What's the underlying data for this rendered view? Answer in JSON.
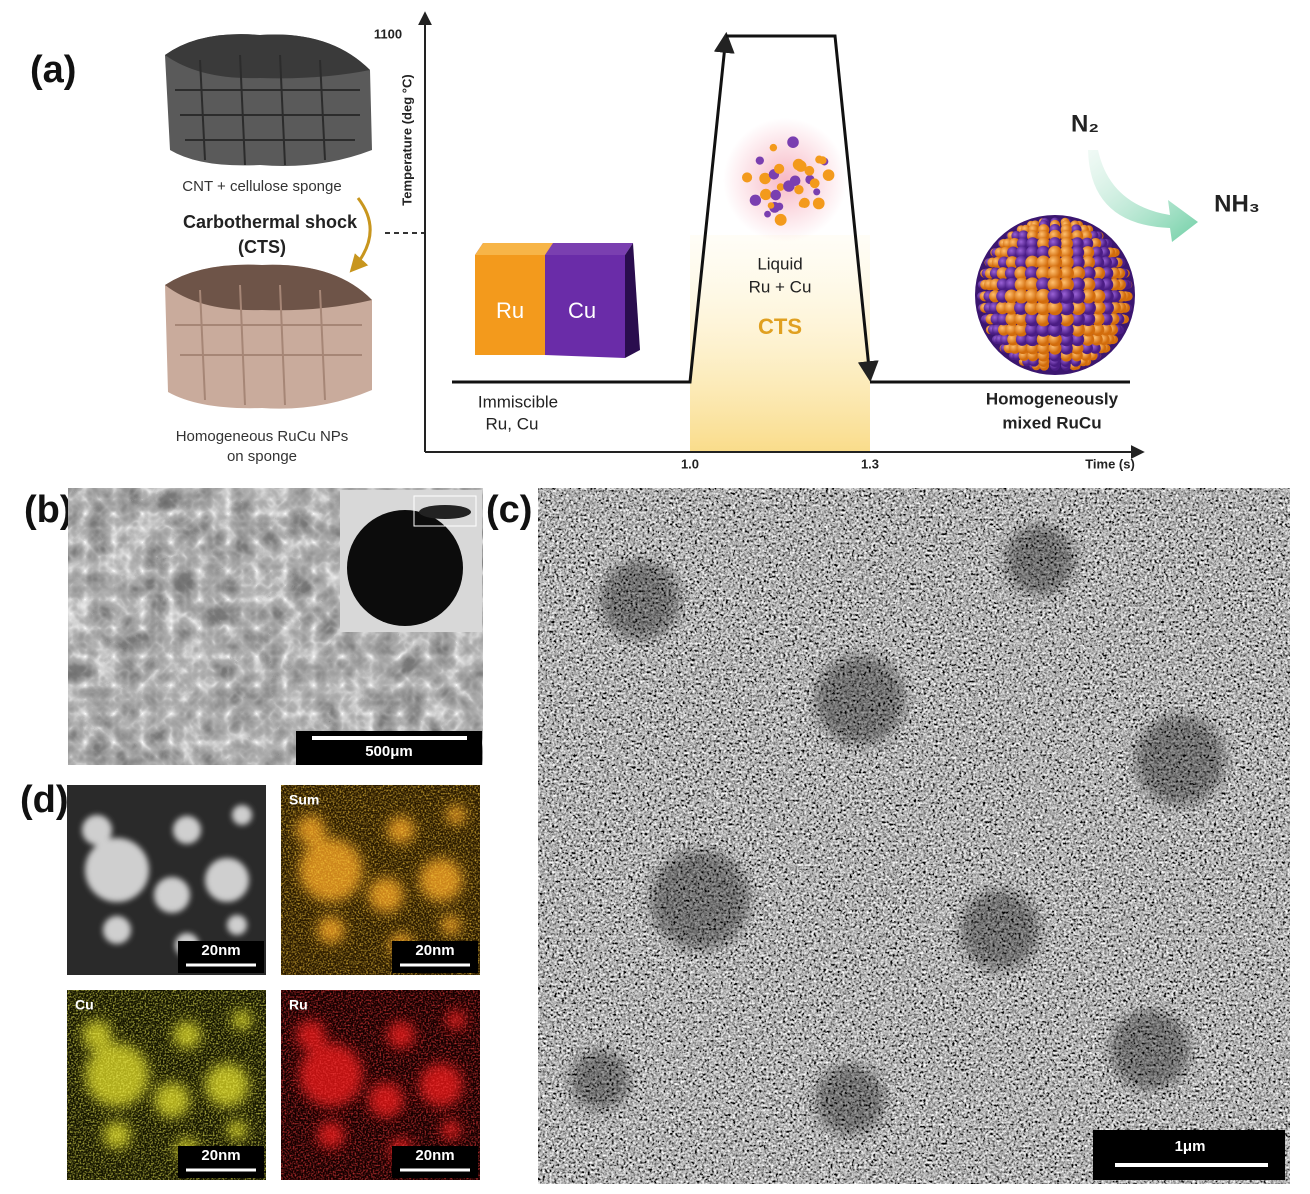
{
  "panel_labels": [
    "(a)",
    "(b)",
    "(c)",
    "(d)"
  ],
  "schematic": {
    "sponge_top": "CNT + cellulose sponge",
    "process": [
      "Carbothermal shock",
      "(CTS)"
    ],
    "sponge_bottom": [
      "Homogeneous RuCu NPs",
      "on sponge"
    ],
    "y_axis_label": "Temperature (deg °C)",
    "y_tick": "1100",
    "x_axis_label": "Time (s)",
    "x_ticks": [
      "1.0",
      "1.3"
    ],
    "block": [
      "Ru",
      "Cu"
    ],
    "start": [
      "Immiscible",
      "Ru, Cu"
    ],
    "liquid": [
      "Liquid",
      "Ru + Cu"
    ],
    "cts": "CTS",
    "reactant": "N₂",
    "product": "NH₃",
    "end": [
      "Homogeneously",
      "mixed RuCu"
    ]
  },
  "sem_b": {
    "scale_bar": "500μm"
  },
  "sem_c": {
    "scale_bar": "1μm"
  },
  "eds": [
    {
      "scale_bar": "20nm"
    },
    {
      "label": "Sum",
      "scale_bar": "20nm"
    },
    {
      "label": "Cu",
      "scale_bar": "20nm"
    },
    {
      "label": "Ru",
      "scale_bar": "20nm"
    }
  ]
}
